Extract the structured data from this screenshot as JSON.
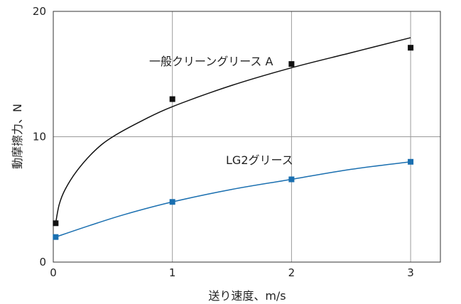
{
  "chart_data": {
    "type": "line",
    "xlabel": "送り速度、m/s",
    "ylabel": "動摩擦力、N",
    "xlim": [
      0,
      3.25
    ],
    "ylim": [
      0,
      20
    ],
    "x_ticks": [
      "0",
      "1",
      "2",
      "3"
    ],
    "y_ticks": [
      "0",
      "10",
      "20"
    ],
    "grid": true,
    "series": [
      {
        "name": "一般クリーングリース A",
        "color": "#111111",
        "marker": "square",
        "points": [
          {
            "x": 0.02,
            "y": 3.1
          },
          {
            "x": 1,
            "y": 13.0
          },
          {
            "x": 2,
            "y": 15.8
          },
          {
            "x": 3,
            "y": 17.1
          }
        ],
        "fit": [
          {
            "x": 0.02,
            "y": 3.1
          },
          {
            "x": 0.05,
            "y": 4.6
          },
          {
            "x": 0.1,
            "y": 5.8
          },
          {
            "x": 0.2,
            "y": 7.3
          },
          {
            "x": 0.35,
            "y": 8.9
          },
          {
            "x": 0.5,
            "y": 10.0
          },
          {
            "x": 0.75,
            "y": 11.3
          },
          {
            "x": 1.0,
            "y": 12.4
          },
          {
            "x": 1.5,
            "y": 14.1
          },
          {
            "x": 2.0,
            "y": 15.5
          },
          {
            "x": 2.5,
            "y": 16.7
          },
          {
            "x": 3.0,
            "y": 17.9
          }
        ]
      },
      {
        "name": "LG2グリース",
        "color": "#1a6fb0",
        "marker": "square",
        "points": [
          {
            "x": 0.02,
            "y": 2.0
          },
          {
            "x": 1,
            "y": 4.8
          },
          {
            "x": 2,
            "y": 6.6
          },
          {
            "x": 3,
            "y": 8.0
          }
        ],
        "fit": [
          {
            "x": 0.02,
            "y": 2.0
          },
          {
            "x": 0.3,
            "y": 2.9
          },
          {
            "x": 0.6,
            "y": 3.8
          },
          {
            "x": 1.0,
            "y": 4.8
          },
          {
            "x": 1.5,
            "y": 5.8
          },
          {
            "x": 2.0,
            "y": 6.6
          },
          {
            "x": 2.5,
            "y": 7.4
          },
          {
            "x": 3.0,
            "y": 8.0
          }
        ]
      }
    ]
  }
}
